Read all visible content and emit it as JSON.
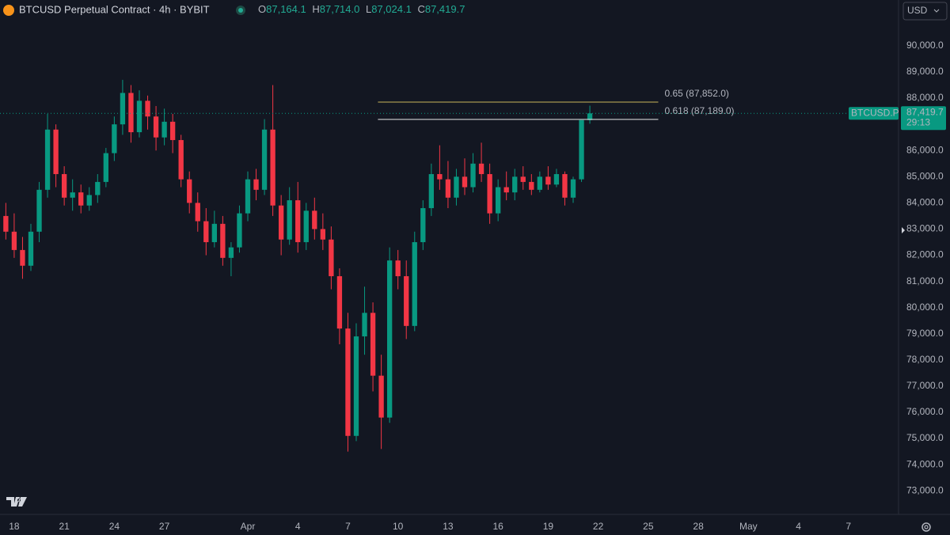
{
  "chart_data": {
    "type": "candlestick",
    "title": "BTCUSD Perpetual Contract · 4h · BYBIT",
    "ohlc_header": {
      "o_label": "O",
      "o": "87,164.1",
      "h_label": "H",
      "h": "87,714.0",
      "l_label": "L",
      "l": "87,024.1",
      "c_label": "C",
      "c": "87,419.7"
    },
    "currency_button": "USD",
    "symbol_tag": "BTCUSD.P",
    "last_price_label": "87,419.7",
    "countdown": "29:13",
    "up_color": "#089981",
    "down_color": "#f23645",
    "grid": false,
    "open": [
      83800,
      83500,
      82900,
      82200,
      81600,
      82900,
      84500,
      86800,
      85100,
      84200,
      84400,
      83900,
      84300,
      84800,
      85900,
      87000,
      88200,
      86700,
      87900,
      87300,
      86500,
      87100,
      86400,
      84900,
      84000,
      83300,
      82500,
      83200,
      81900,
      82300,
      83600,
      84900,
      84500,
      86800,
      83900,
      82600,
      84100,
      82500,
      83700,
      83000,
      82600,
      81200,
      79200,
      75100,
      78900,
      79800,
      77400,
      75800,
      81800,
      81200,
      79300,
      82500,
      83800,
      85100,
      84900,
      84200,
      85000,
      84600,
      85500,
      85100,
      83600,
      84600,
      84400,
      85000,
      84800,
      84500,
      85000,
      84700,
      85100,
      84200,
      84900,
      87164.1
    ],
    "high": [
      84300,
      84000,
      83600,
      82700,
      83200,
      84800,
      87400,
      87000,
      85400,
      84900,
      84700,
      84600,
      85100,
      86100,
      87300,
      88700,
      88500,
      88300,
      88100,
      87700,
      87600,
      87400,
      86600,
      85200,
      84400,
      83800,
      83700,
      83500,
      82500,
      83900,
      85200,
      85300,
      87200,
      88500,
      84300,
      84600,
      84800,
      84000,
      84200,
      83600,
      83100,
      81500,
      79800,
      79400,
      80800,
      80200,
      78200,
      82300,
      82200,
      81800,
      82900,
      84100,
      85500,
      86200,
      85600,
      85300,
      85700,
      85900,
      86300,
      85500,
      84900,
      85200,
      85300,
      85400,
      85100,
      85200,
      85400,
      85300,
      85200,
      85000,
      87100,
      87714
    ],
    "low": [
      83200,
      82600,
      81900,
      81100,
      81400,
      82500,
      84200,
      84600,
      83900,
      83700,
      83600,
      83700,
      84000,
      84600,
      85600,
      86600,
      86300,
      86500,
      86800,
      86000,
      86200,
      85900,
      84600,
      83600,
      82900,
      82000,
      82300,
      81600,
      81200,
      82100,
      83300,
      84100,
      84300,
      83500,
      82000,
      82400,
      82100,
      82200,
      82600,
      82200,
      80700,
      78600,
      74500,
      74900,
      78200,
      76800,
      74600,
      75600,
      80700,
      78800,
      79100,
      82200,
      83500,
      84500,
      83800,
      83900,
      84300,
      84400,
      84800,
      83200,
      83300,
      84100,
      84100,
      84500,
      84300,
      84400,
      84500,
      84600,
      83900,
      84000,
      84800,
      87024.1
    ],
    "close": [
      83500,
      82900,
      82200,
      81600,
      82900,
      84500,
      86800,
      85100,
      84200,
      84400,
      83900,
      84300,
      84800,
      85900,
      87000,
      88200,
      86700,
      87900,
      87300,
      86500,
      87100,
      86400,
      84900,
      84000,
      83300,
      82500,
      83200,
      81900,
      82300,
      83600,
      84900,
      84500,
      86800,
      83900,
      82600,
      84100,
      82500,
      83700,
      83000,
      82600,
      81200,
      79200,
      75100,
      78900,
      79800,
      77400,
      75800,
      81800,
      81200,
      79300,
      82500,
      83800,
      85100,
      84900,
      84200,
      85000,
      84600,
      85500,
      85100,
      83600,
      84600,
      84400,
      85000,
      84800,
      84500,
      85000,
      84700,
      85100,
      84200,
      84900,
      87164.1,
      87419.7
    ],
    "fib_levels": [
      {
        "label": "0.65 (87,852.0)",
        "value": 87852,
        "color": "#c8b45a",
        "x_range": [
          45.6,
          79.2
        ]
      },
      {
        "label": "0.618 (87,189.0)",
        "value": 87189,
        "color": "#e8e8e8",
        "x_range": [
          45.6,
          79.2
        ]
      }
    ],
    "xlim": [
      0.3,
      108
    ],
    "xticks": [
      {
        "value": 2,
        "label": "18"
      },
      {
        "value": 8,
        "label": "21"
      },
      {
        "value": 14,
        "label": "24"
      },
      {
        "value": 20,
        "label": "27"
      },
      {
        "value": 30,
        "label": "Apr"
      },
      {
        "value": 36,
        "label": "4"
      },
      {
        "value": 42,
        "label": "7"
      },
      {
        "value": 48,
        "label": "10"
      },
      {
        "value": 54,
        "label": "13"
      },
      {
        "value": 60,
        "label": "16"
      },
      {
        "value": 66,
        "label": "19"
      },
      {
        "value": 72,
        "label": "22"
      },
      {
        "value": 78,
        "label": "25"
      },
      {
        "value": 84,
        "label": "28"
      },
      {
        "value": 90,
        "label": "May"
      },
      {
        "value": 96,
        "label": "4"
      },
      {
        "value": 102,
        "label": "7"
      }
    ],
    "ylim": [
      72100,
      91750
    ],
    "yticks": [
      {
        "value": 73000,
        "label": "73,000.0"
      },
      {
        "value": 74000,
        "label": "74,000.0"
      },
      {
        "value": 75000,
        "label": "75,000.0"
      },
      {
        "value": 76000,
        "label": "76,000.0"
      },
      {
        "value": 77000,
        "label": "77,000.0"
      },
      {
        "value": 78000,
        "label": "78,000.0"
      },
      {
        "value": 79000,
        "label": "79,000.0"
      },
      {
        "value": 80000,
        "label": "80,000.0"
      },
      {
        "value": 81000,
        "label": "81,000.0"
      },
      {
        "value": 82000,
        "label": "82,000.0"
      },
      {
        "value": 83000,
        "label": "83,000.0"
      },
      {
        "value": 84000,
        "label": "84,000.0"
      },
      {
        "value": 85000,
        "label": "85,000.0"
      },
      {
        "value": 86000,
        "label": "86,000.0"
      },
      {
        "value": 87000,
        "label": "87,000.0"
      },
      {
        "value": 88000,
        "label": "88,000.0"
      },
      {
        "value": 89000,
        "label": "89,000.0"
      },
      {
        "value": 90000,
        "label": "90,000.0"
      }
    ]
  }
}
